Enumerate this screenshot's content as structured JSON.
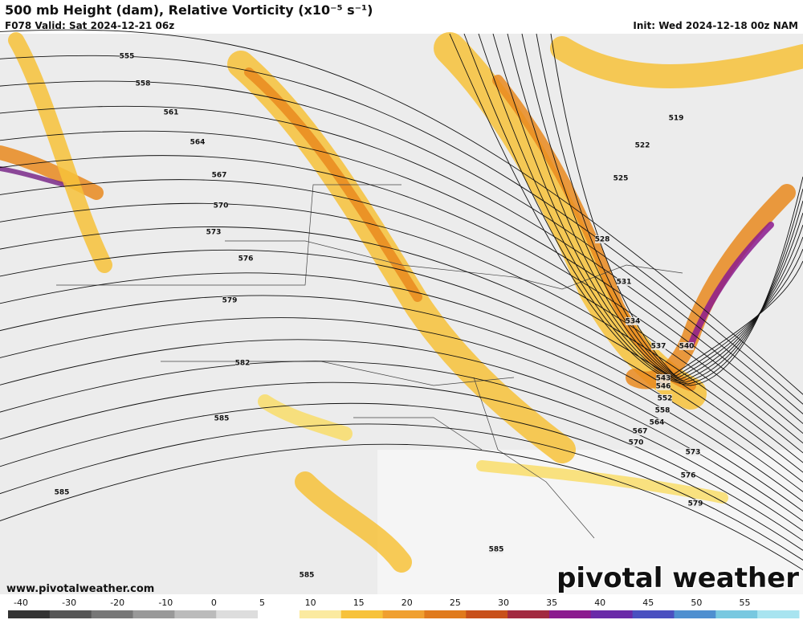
{
  "header": {
    "title": "500 mb Height (dam), Relative Vorticity (x10⁻⁵ s⁻¹)",
    "valid": "F078 Valid: Sat 2024-12-21 06z",
    "init": "Init: Wed 2024-12-18 00z NAM"
  },
  "contour_labels": [
    "555",
    "558",
    "561",
    "564",
    "567",
    "570",
    "573",
    "576",
    "579",
    "582",
    "585",
    "585",
    "585",
    "585",
    "519",
    "522",
    "525",
    "528",
    "531",
    "534",
    "537",
    "540",
    "543",
    "546",
    "552",
    "558",
    "564",
    "567",
    "570",
    "573",
    "576",
    "579"
  ],
  "colorbar_ticks": [
    "-40",
    "-30",
    "-20",
    "-10",
    "0",
    "5",
    "10",
    "15",
    "20",
    "25",
    "30",
    "35",
    "40",
    "45",
    "50",
    "55"
  ],
  "footer": {
    "website": "www.pivotalweather.com",
    "logo": "pivotal weather"
  }
}
